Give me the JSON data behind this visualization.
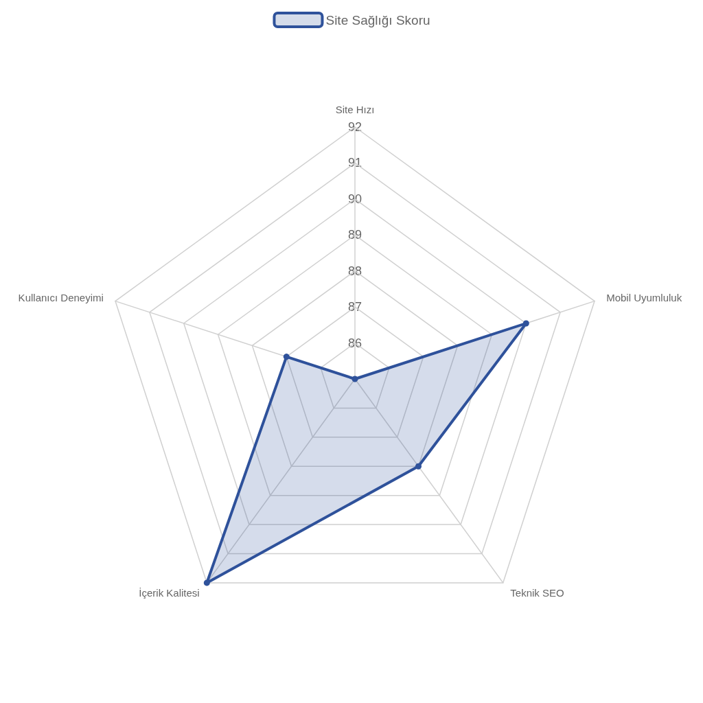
{
  "chart_data": {
    "type": "radar",
    "categories": [
      "Site Hızı",
      "Mobil Uyumluluk",
      "Teknik SEO",
      "İçerik Kalitesi",
      "Kullanıcı Deneyimi"
    ],
    "series": [
      {
        "name": "Site Sağlığı Skoru",
        "color": "#2f529b",
        "values": [
          85,
          90,
          88,
          92,
          87
        ]
      }
    ],
    "ylim": [
      85,
      92
    ],
    "yticks": [
      86,
      87,
      88,
      89,
      90,
      91,
      92
    ],
    "grid": true,
    "legend": "top",
    "marker": "circle"
  }
}
